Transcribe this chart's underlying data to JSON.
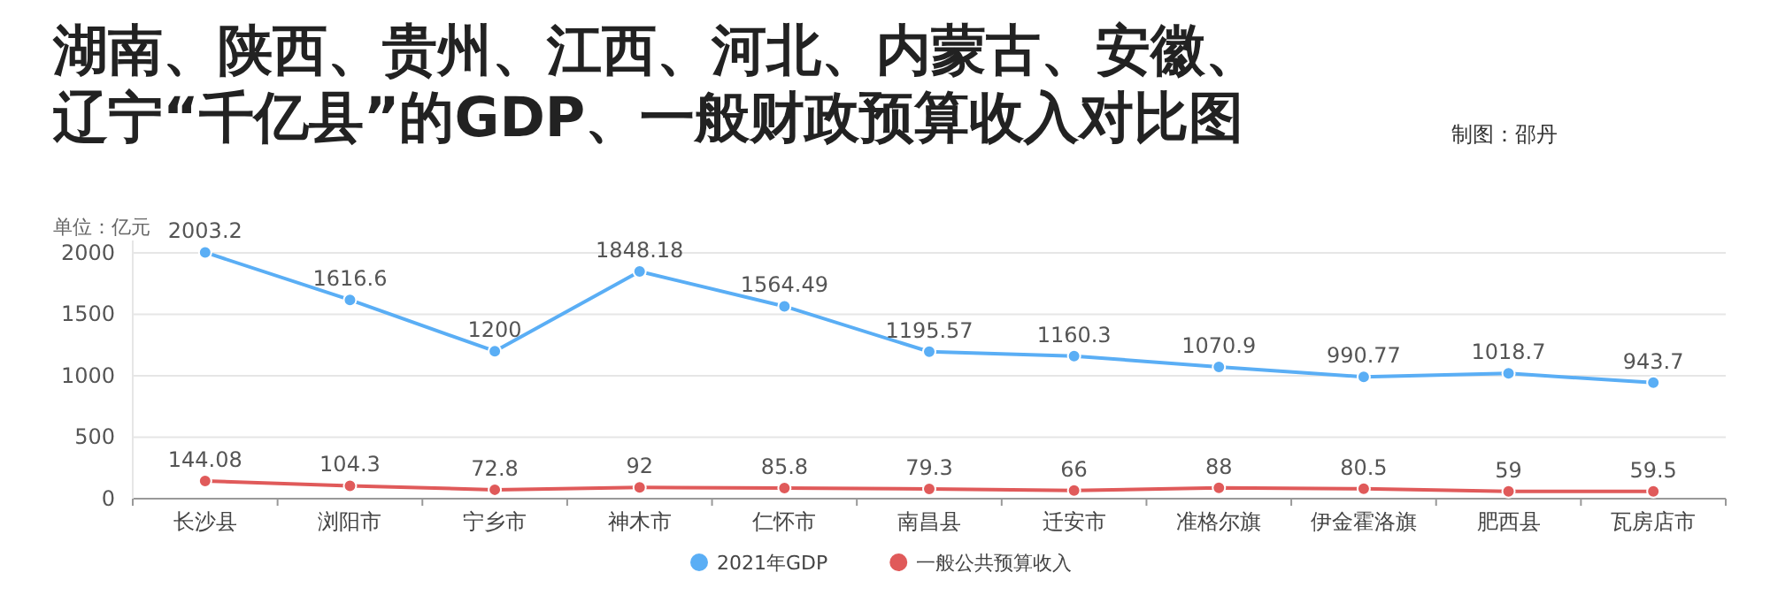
{
  "chart_data": {
    "type": "line",
    "title": "湖南、陕西、贵州、江西、河北、内蒙古、安徽、辽宁“千亿县”的GDP、一般财政预算收入对比图",
    "ylabel": "单位：亿元",
    "annotations": [
      "制图：邵丹"
    ],
    "categories": [
      "长沙县",
      "浏阳市",
      "宁乡市",
      "神木市",
      "仁怀市",
      "南昌县",
      "迁安市",
      "准格尔旗",
      "伊金霍洛旗",
      "肥西县",
      "瓦房店市"
    ],
    "series": [
      {
        "name": "2021年GDP",
        "color": "#5aaef5",
        "values": [
          2003.2,
          1616.6,
          1200,
          1848.18,
          1564.49,
          1195.57,
          1160.3,
          1070.9,
          990.77,
          1018.7,
          943.7
        ]
      },
      {
        "name": "一般公共预算收入",
        "color": "#e05a5a",
        "values": [
          144.08,
          104.3,
          72.8,
          92,
          85.8,
          79.3,
          66,
          88,
          80.5,
          59,
          59.5
        ]
      }
    ],
    "ylim": [
      0,
      2100
    ],
    "yticks": [
      0,
      500,
      1000,
      1500,
      2000
    ],
    "grid": "y",
    "legend": "bottom",
    "marker": "circle",
    "line_style": "solid",
    "data_labels": true
  }
}
